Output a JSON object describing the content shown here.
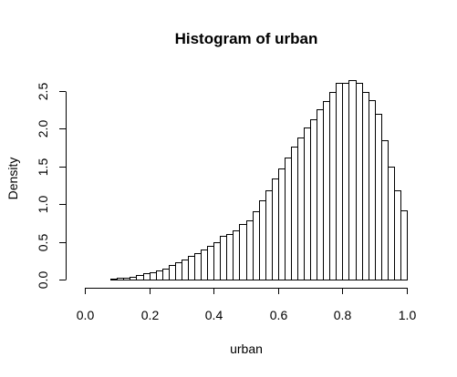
{
  "chart_data": {
    "type": "histogram",
    "title": "Histogram of urban",
    "xlabel": "urban",
    "ylabel": "Density",
    "xlim": [
      0,
      1
    ],
    "ylim": [
      0,
      2.65
    ],
    "bin_width": 0.02,
    "bin_start": 0.0,
    "x_ticks": [
      {
        "value": 0.0,
        "label": "0.0"
      },
      {
        "value": 0.2,
        "label": "0.2"
      },
      {
        "value": 0.4,
        "label": "0.4"
      },
      {
        "value": 0.6,
        "label": "0.6"
      },
      {
        "value": 0.8,
        "label": "0.8"
      },
      {
        "value": 1.0,
        "label": "1.0"
      }
    ],
    "y_ticks": [
      {
        "value": 0.0,
        "label": "0.0"
      },
      {
        "value": 0.5,
        "label": "0.5"
      },
      {
        "value": 1.0,
        "label": "1.0"
      },
      {
        "value": 1.5,
        "label": "1.5"
      },
      {
        "value": 2.0,
        "label": "2.0"
      },
      {
        "value": 2.5,
        "label": "2.5"
      }
    ],
    "densities": [
      0.0,
      0.0,
      0.0,
      0.0,
      0.01,
      0.02,
      0.03,
      0.04,
      0.06,
      0.08,
      0.1,
      0.12,
      0.15,
      0.19,
      0.23,
      0.27,
      0.31,
      0.35,
      0.4,
      0.45,
      0.5,
      0.58,
      0.6,
      0.65,
      0.73,
      0.79,
      0.9,
      1.05,
      1.18,
      1.34,
      1.47,
      1.62,
      1.76,
      1.88,
      2.02,
      2.12,
      2.25,
      2.37,
      2.49,
      2.61,
      2.6,
      2.64,
      2.6,
      2.49,
      2.38,
      2.19,
      1.84,
      1.5,
      1.18,
      0.92
    ]
  }
}
